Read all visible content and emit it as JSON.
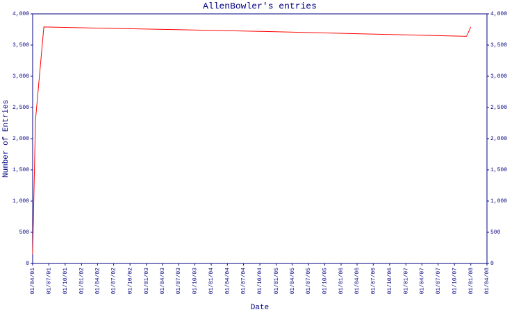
{
  "chart_data": {
    "type": "line",
    "title": "AllenBowler's entries",
    "x_label": "Date",
    "y_label": "Number of Entries",
    "x": [
      "2001-04-01",
      "2001-04-17",
      "2001-06-03",
      "2004-10-01",
      "2007-12-08",
      "2008-01-01"
    ],
    "series": [
      {
        "name": "entries",
        "color": "#ff0000",
        "values": [
          150,
          2300,
          3790,
          3720,
          3640,
          3790
        ]
      }
    ],
    "xlim": [
      "2001-04-01",
      "2008-04-01"
    ],
    "xticks": [
      {
        "value": "2001-04-01",
        "label": "01/04/01"
      },
      {
        "value": "2001-07-01",
        "label": "01/07/01"
      },
      {
        "value": "2001-10-01",
        "label": "01/10/01"
      },
      {
        "value": "2002-01-01",
        "label": "01/01/02"
      },
      {
        "value": "2002-04-01",
        "label": "01/04/02"
      },
      {
        "value": "2002-07-01",
        "label": "01/07/02"
      },
      {
        "value": "2002-10-01",
        "label": "01/10/02"
      },
      {
        "value": "2003-01-01",
        "label": "01/01/03"
      },
      {
        "value": "2003-04-01",
        "label": "01/04/03"
      },
      {
        "value": "2003-07-01",
        "label": "01/07/03"
      },
      {
        "value": "2003-10-01",
        "label": "01/10/03"
      },
      {
        "value": "2004-01-01",
        "label": "01/01/04"
      },
      {
        "value": "2004-04-01",
        "label": "01/04/04"
      },
      {
        "value": "2004-07-01",
        "label": "01/07/04"
      },
      {
        "value": "2004-10-01",
        "label": "01/10/04"
      },
      {
        "value": "2005-01-01",
        "label": "01/01/05"
      },
      {
        "value": "2005-04-01",
        "label": "01/04/05"
      },
      {
        "value": "2005-07-01",
        "label": "01/07/05"
      },
      {
        "value": "2005-10-01",
        "label": "01/10/05"
      },
      {
        "value": "2006-01-01",
        "label": "01/01/06"
      },
      {
        "value": "2006-04-01",
        "label": "01/04/06"
      },
      {
        "value": "2006-07-01",
        "label": "01/07/06"
      },
      {
        "value": "2006-10-01",
        "label": "01/10/06"
      },
      {
        "value": "2007-01-01",
        "label": "01/01/07"
      },
      {
        "value": "2007-04-01",
        "label": "01/04/07"
      },
      {
        "value": "2007-07-01",
        "label": "01/07/07"
      },
      {
        "value": "2007-10-01",
        "label": "01/10/07"
      },
      {
        "value": "2008-01-01",
        "label": "01/01/08"
      },
      {
        "value": "2008-04-01",
        "label": "01/04/08"
      }
    ],
    "ylim": [
      0,
      4000
    ],
    "yticks": [
      0,
      500,
      {
        "value": 1000,
        "label": "1,000"
      },
      {
        "value": 1500,
        "label": "1,500"
      },
      {
        "value": 2000,
        "label": "2,000"
      },
      {
        "value": 2500,
        "label": "2,500"
      },
      {
        "value": 3000,
        "label": "3,000"
      },
      {
        "value": 3500,
        "label": "3,500"
      },
      {
        "value": 4000,
        "label": "4,000"
      }
    ],
    "y2lim": [
      0,
      4000
    ],
    "y2ticks": [
      0,
      500,
      {
        "value": 1000,
        "label": "1,000"
      },
      {
        "value": 1500,
        "label": "1,500"
      },
      {
        "value": 2000,
        "label": "2,000"
      },
      {
        "value": 2500,
        "label": "2,500"
      },
      {
        "value": 3000,
        "label": "3,000"
      },
      {
        "value": 3500,
        "label": "3,500"
      },
      {
        "value": 4000,
        "label": "4,000"
      }
    ],
    "axis_color": "#000080",
    "grid": false
  }
}
